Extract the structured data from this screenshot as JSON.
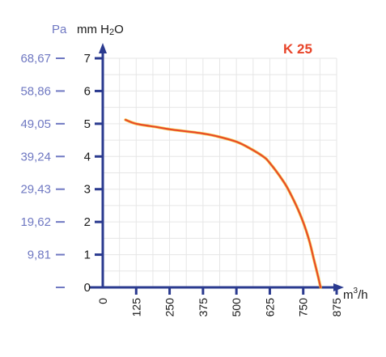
{
  "chart_data": {
    "type": "line",
    "title": "",
    "curve_label": "K 25",
    "x_unit": "m³/h",
    "y_unit_left": "Pa",
    "y_unit_right": "mm H2O",
    "xlim": [
      0,
      875
    ],
    "ylim": [
      0,
      7
    ],
    "x_ticks": [
      "0",
      "125",
      "250",
      "375",
      "500",
      "625",
      "750",
      "875"
    ],
    "y_ticks_mm": [
      "0",
      "1",
      "2",
      "3",
      "4",
      "5",
      "6",
      "7"
    ],
    "y_ticks_pa": [
      "",
      "9,81",
      "19,62",
      "29,43",
      "39,24",
      "49,05",
      "58,86",
      "68,67"
    ],
    "grid": true,
    "series": [
      {
        "name": "",
        "color": "#e8452a",
        "highlight": "#f2c12e",
        "x": [
          85,
          125,
          200,
          250,
          300,
          375,
          425,
          500,
          550,
          600,
          625,
          675,
          700,
          740,
          770,
          790,
          805,
          815
        ],
        "y": [
          5.12,
          5.0,
          4.9,
          4.83,
          4.78,
          4.7,
          4.62,
          4.45,
          4.25,
          4.0,
          3.8,
          3.25,
          2.9,
          2.2,
          1.5,
          0.85,
          0.35,
          0.0
        ]
      }
    ]
  }
}
